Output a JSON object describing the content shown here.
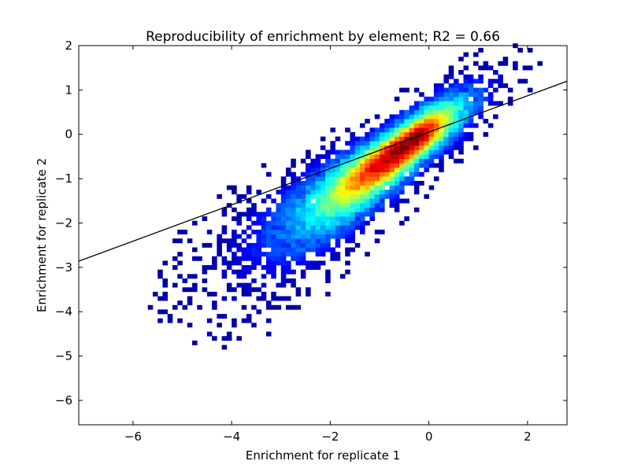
{
  "chart_data": {
    "type": "heatmap",
    "title": "Reproducibility of enrichment by element; R2 = 0.66",
    "xlabel": "Enrichment for replicate 1",
    "ylabel": "Enrichment for replicate 2",
    "xlim": [
      -7.1,
      2.8
    ],
    "ylim": [
      -6.55,
      2.0
    ],
    "xticks": [
      -6,
      -4,
      -2,
      0,
      2
    ],
    "yticks": [
      -6,
      -5,
      -4,
      -3,
      -2,
      -1,
      0,
      1,
      2
    ],
    "xtick_labels": [
      "−6",
      "−4",
      "−2",
      "0",
      "2"
    ],
    "ytick_labels": [
      "−6",
      "−5",
      "−4",
      "−3",
      "−2",
      "−1",
      "0",
      "1",
      "2"
    ],
    "colormap": "jet",
    "grid": false,
    "density_model": {
      "core_center": [
        -0.4,
        -0.2
      ],
      "slope": 0.84,
      "intercept": -0.04,
      "sigma_along": 1.2,
      "sigma_across": 0.32
    },
    "fit_line": {
      "slope": 0.41,
      "intercept": 0.05,
      "color": "#000000"
    }
  }
}
